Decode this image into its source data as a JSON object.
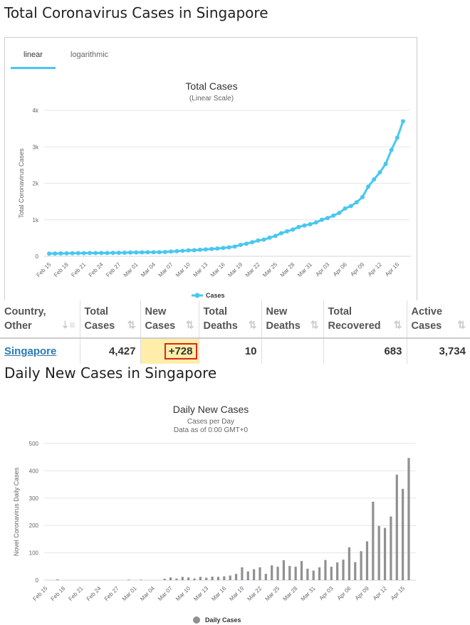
{
  "headings": {
    "total": "Total Coronavirus Cases in Singapore",
    "daily": "Daily New Cases in Singapore"
  },
  "tabs": {
    "linear": "linear",
    "logarithmic": "logarithmic"
  },
  "colors": {
    "accent": "#48c7f0",
    "daily_bar": "#909090",
    "highlight": "#ffeeaa",
    "highlight_border": "#d9281e"
  },
  "table": {
    "headers": [
      [
        "Country,",
        "Other"
      ],
      [
        "Total",
        "Cases"
      ],
      [
        "New",
        "Cases"
      ],
      [
        "Total",
        "Deaths"
      ],
      [
        "New",
        "Deaths"
      ],
      [
        "Total",
        "Recovered"
      ],
      [
        "Active",
        "Cases"
      ]
    ],
    "row": {
      "country": "Singapore",
      "total_cases": "4,427",
      "new_cases": "+728",
      "total_deaths": "10",
      "new_deaths": "",
      "total_recovered": "683",
      "active_cases": "3,734"
    }
  },
  "chart_data": [
    {
      "type": "line",
      "title": "Total Cases",
      "subtitle": "(Linear Scale)",
      "xlabel": "",
      "ylabel": "Total Coronavirus Cases",
      "ylim": [
        0,
        4000
      ],
      "yticks": [
        0,
        1000,
        2000,
        3000,
        4000
      ],
      "ytick_labels": [
        "0",
        "1k",
        "2k",
        "3k",
        "4k"
      ],
      "legend": [
        "Cases"
      ],
      "legend_position": "bottom-center",
      "x_tick_labels": [
        "Feb 15",
        "Feb 18",
        "Feb 21",
        "Feb 24",
        "Feb 27",
        "Mar 01",
        "Mar 04",
        "Mar 07",
        "Mar 10",
        "Mar 13",
        "Mar 16",
        "Mar 19",
        "Mar 22",
        "Mar 25",
        "Mar 28",
        "Mar 31",
        "Apr 03",
        "Apr 06",
        "Apr 09",
        "Apr 12",
        "Apr 15"
      ],
      "tick_every": 3,
      "series": [
        {
          "name": "Cases",
          "values": [
            72,
            75,
            77,
            81,
            84,
            85,
            86,
            89,
            89,
            90,
            91,
            93,
            96,
            98,
            102,
            106,
            108,
            110,
            110,
            112,
            117,
            130,
            138,
            150,
            160,
            166,
            178,
            187,
            200,
            212,
            226,
            243,
            266,
            313,
            345,
            385,
            432,
            455,
            509,
            558,
            631,
            683,
            732,
            802,
            844,
            879,
            926,
            1000,
            1049,
            1114,
            1189,
            1309,
            1375,
            1481,
            1623,
            1910,
            2108,
            2299,
            2532,
            2918,
            3252,
            3699
          ]
        }
      ]
    },
    {
      "type": "bar",
      "title": "Daily New Cases",
      "subtitle": "Cases per Day",
      "subtitle2": "Data as of 0:00 GMT+0",
      "xlabel": "",
      "ylabel": "Novel Coronavirus Daily Cases",
      "ylim": [
        0,
        500
      ],
      "yticks": [
        0,
        100,
        200,
        300,
        400,
        500
      ],
      "ytick_labels": [
        "0",
        "100",
        "200",
        "300",
        "400",
        "500"
      ],
      "legend": [
        "Daily Cases"
      ],
      "legend_position": "bottom-center",
      "x_tick_labels": [
        "Feb 15",
        "Feb 18",
        "Feb 21",
        "Feb 24",
        "Feb 27",
        "Mar 01",
        "Mar 04",
        "Mar 07",
        "Mar 10",
        "Mar 13",
        "Mar 16",
        "Mar 19",
        "Mar 22",
        "Mar 25",
        "Mar 28",
        "Mar 31",
        "Apr 03",
        "Apr 06",
        "Apr 09",
        "Apr 12",
        "Apr 15"
      ],
      "tick_every": 3,
      "series": [
        {
          "name": "Daily Cases",
          "values": [
            0,
            0,
            3,
            0,
            0,
            0,
            0,
            0,
            0,
            0,
            0,
            0,
            0,
            0,
            2,
            0,
            2,
            0,
            0,
            0,
            5,
            10,
            6,
            12,
            10,
            6,
            12,
            9,
            13,
            12,
            14,
            17,
            23,
            47,
            32,
            40,
            47,
            23,
            54,
            49,
            73,
            52,
            49,
            70,
            42,
            35,
            47,
            74,
            49,
            65,
            75,
            120,
            66,
            106,
            142,
            287,
            198,
            191,
            233,
            386,
            334,
            447
          ]
        }
      ]
    }
  ]
}
